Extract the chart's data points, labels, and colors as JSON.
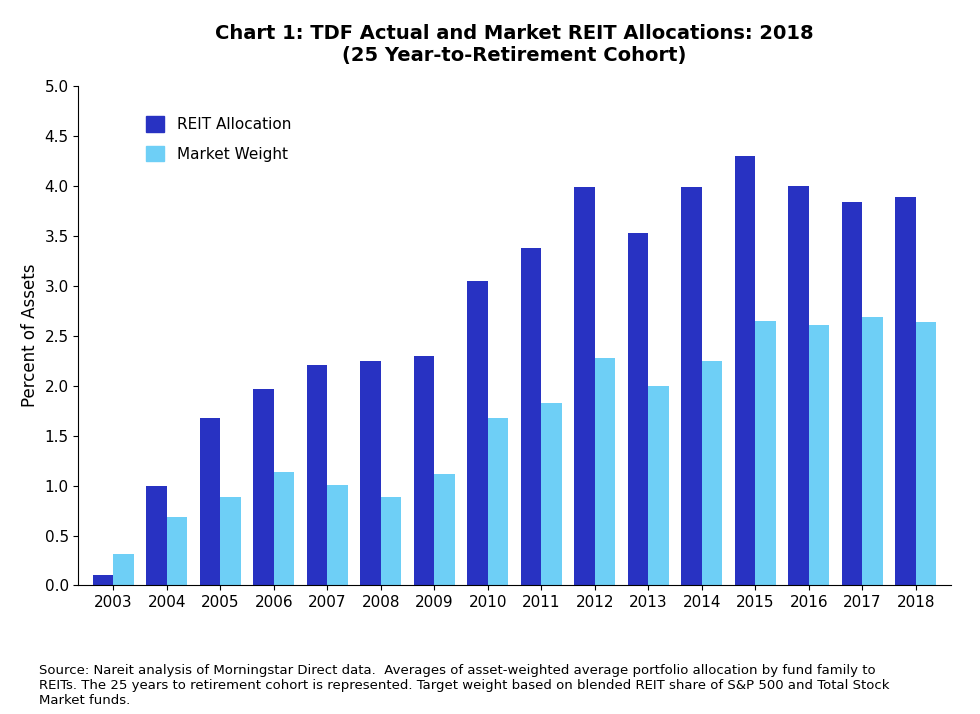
{
  "title_line1": "Chart 1: TDF Actual and Market REIT Allocations: 2018",
  "title_line2": "(25 Year-to-Retirement Cohort)",
  "years": [
    2003,
    2004,
    2005,
    2006,
    2007,
    2008,
    2009,
    2010,
    2011,
    2012,
    2013,
    2014,
    2015,
    2016,
    2017,
    2018
  ],
  "reit_allocation": [
    0.1,
    1.0,
    1.68,
    1.97,
    2.21,
    2.25,
    2.3,
    3.05,
    3.38,
    3.99,
    3.53,
    3.99,
    4.3,
    4.0,
    3.84,
    3.89
  ],
  "market_weight": [
    0.31,
    0.69,
    0.89,
    1.14,
    1.01,
    0.89,
    1.12,
    1.68,
    1.83,
    2.28,
    2.0,
    2.25,
    2.65,
    2.61,
    2.69,
    2.64
  ],
  "reit_color": "#2832C2",
  "market_color": "#6ECFF6",
  "ylabel": "Percent of Assets",
  "ylim": [
    0.0,
    5.0
  ],
  "yticks": [
    0.0,
    0.5,
    1.0,
    1.5,
    2.0,
    2.5,
    3.0,
    3.5,
    4.0,
    4.5,
    5.0
  ],
  "legend_reit": "REIT Allocation",
  "legend_market": "Market Weight",
  "footnote": "Source: Nareit analysis of Morningstar Direct data.  Averages of asset-weighted average portfolio allocation by fund family to\nREITs. The 25 years to retirement cohort is represented. Target weight based on blended REIT share of S&P 500 and Total Stock\nMarket funds.",
  "background_color": "#FFFFFF",
  "bar_width": 0.38,
  "title_fontsize": 14,
  "label_fontsize": 11,
  "ylabel_fontsize": 12,
  "footnote_fontsize": 9.5,
  "legend_fontsize": 11
}
